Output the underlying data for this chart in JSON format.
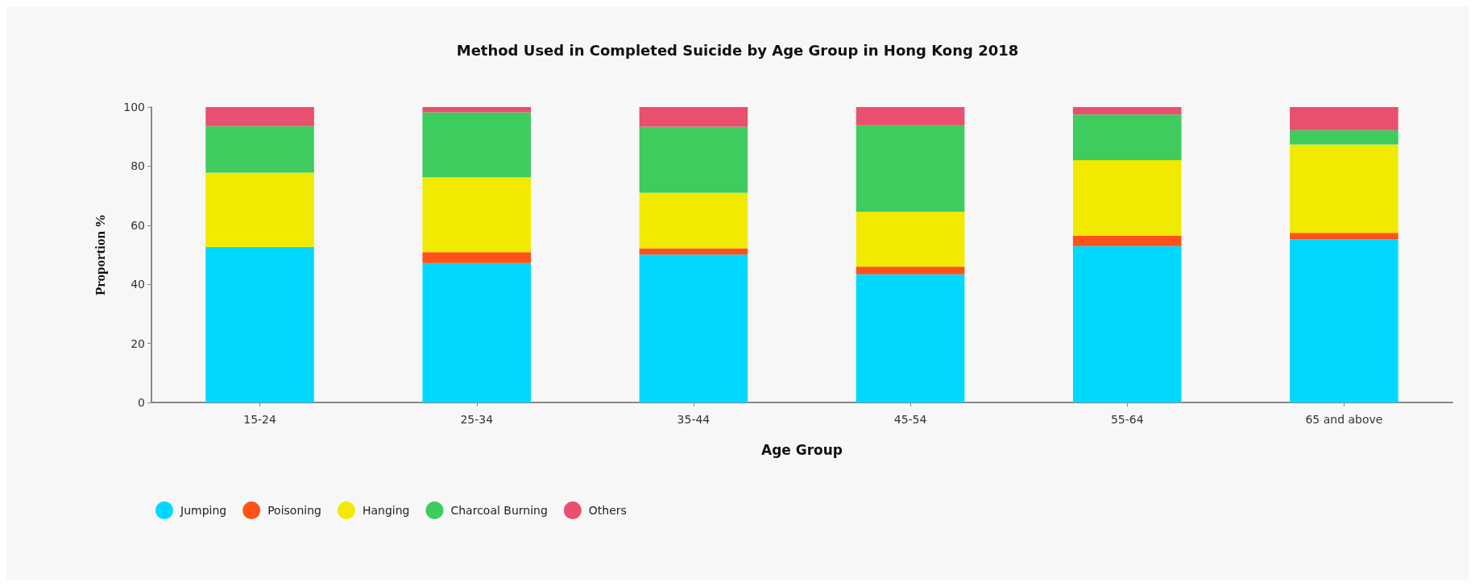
{
  "chart_data": {
    "type": "bar",
    "stacked": true,
    "title": "Method Used in Completed Suicide by Age Group in Hong Kong 2018",
    "xlabel": "Age Group",
    "ylabel": "Proportion %",
    "categories": [
      "15-24",
      "25-34",
      "35-44",
      "45-54",
      "55-64",
      "65 and above"
    ],
    "series": [
      {
        "name": "Jumping",
        "color": "#00d8ff",
        "values": [
          52.6,
          47.2,
          50.1,
          43.4,
          52.9,
          55.2
        ]
      },
      {
        "name": "Poisoning",
        "color": "#ff5219",
        "values": [
          0,
          3.7,
          2.1,
          2.6,
          3.6,
          2.2
        ]
      },
      {
        "name": "Hanging",
        "color": "#f2e900",
        "values": [
          25.2,
          25.3,
          18.8,
          18.6,
          25.5,
          29.9
        ]
      },
      {
        "name": "Charcoal Burning",
        "color": "#3ecc5f",
        "values": [
          15.7,
          22.0,
          22.3,
          29.2,
          15.5,
          4.9
        ]
      },
      {
        "name": "Others",
        "color": "#e94f6e",
        "values": [
          6.5,
          1.8,
          6.7,
          6.2,
          2.5,
          7.8
        ]
      }
    ],
    "ylim": [
      0,
      100
    ],
    "yticks": [
      0,
      20,
      40,
      60,
      80,
      100
    ],
    "grid": false,
    "legend": "bottom left"
  }
}
